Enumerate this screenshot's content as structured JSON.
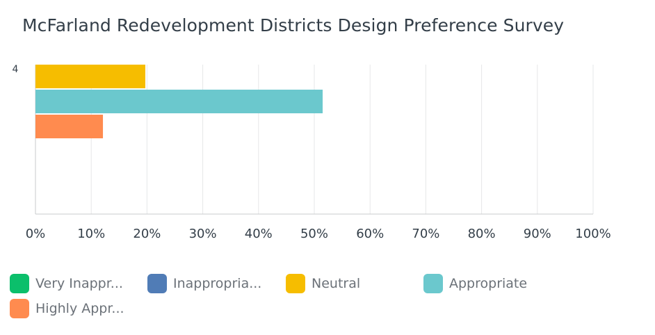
{
  "title": "McFarland Redevelopment Districts Design Preference Survey",
  "chart_data": {
    "type": "bar",
    "orientation": "horizontal",
    "title": "McFarland Redevelopment Districts Design Preference Survey",
    "categories": [
      "4"
    ],
    "series": [
      {
        "name": "Very Inappropriate",
        "legend_label": "Very Inappr...",
        "color": "#0bbf6b",
        "values": [
          0
        ]
      },
      {
        "name": "Inappropriate",
        "legend_label": "Inappropria...",
        "color": "#507cb6",
        "values": [
          0
        ]
      },
      {
        "name": "Neutral",
        "legend_label": "Neutral",
        "color": "#f6bd00",
        "values": [
          19.7
        ]
      },
      {
        "name": "Appropriate",
        "legend_label": "Appropriate",
        "color": "#6bc8cd",
        "values": [
          51.5
        ]
      },
      {
        "name": "Highly Appropriate",
        "legend_label": "Highly Appr...",
        "color": "#ff8b4f",
        "values": [
          12.1
        ]
      }
    ],
    "xlim": [
      0,
      100
    ],
    "xticks": [
      "0%",
      "10%",
      "20%",
      "30%",
      "40%",
      "50%",
      "60%",
      "70%",
      "80%",
      "90%",
      "100%"
    ],
    "xlabel": "",
    "ylabel": "",
    "grid": true,
    "legend_position": "bottom"
  }
}
